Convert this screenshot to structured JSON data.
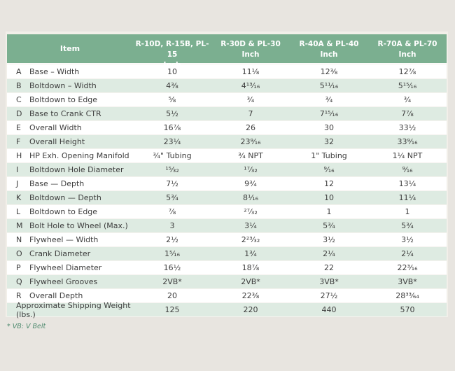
{
  "chart_data": {
    "type": "table",
    "header": {
      "item_label": "Item",
      "columns": [
        {
          "models": "R-10D, R-15B, PL-15",
          "unit": "Inch"
        },
        {
          "models": "R-30D & PL-30",
          "unit": "Inch"
        },
        {
          "models": "R-40A & PL-40",
          "unit": "Inch"
        },
        {
          "models": "R-70A & PL-70",
          "unit": "Inch"
        }
      ]
    },
    "rows": [
      {
        "letter": "A",
        "item": "Base – Width",
        "values": [
          "10",
          "11⅛",
          "12⅜",
          "12⅞"
        ]
      },
      {
        "letter": "B",
        "item": "Boltdown – Width",
        "values": [
          "4⅜",
          "4¹³⁄₁₆",
          "5¹¹⁄₁₆",
          "5¹⁵⁄₁₆"
        ]
      },
      {
        "letter": "C",
        "item": "Boltdown to Edge",
        "values": [
          "⅝",
          "¾",
          "¾",
          "¾"
        ]
      },
      {
        "letter": "D",
        "item": "Base to Crank CTR",
        "values": [
          "5½",
          "7",
          "7¹⁵⁄₁₆",
          "7⅞"
        ]
      },
      {
        "letter": "E",
        "item": "Overall Width",
        "values": [
          "16⅞",
          "26",
          "30",
          "33½"
        ]
      },
      {
        "letter": "F",
        "item": "Overall Height",
        "values": [
          "23¼",
          "23⁹⁄₁₆",
          "32",
          "33⁹⁄₁₆"
        ]
      },
      {
        "letter": "H",
        "item": "HP Exh. Opening Manifold",
        "values": [
          "¾\" Tubing",
          "¾ NPT",
          "1\" Tubing",
          "1¼ NPT"
        ]
      },
      {
        "letter": "I",
        "item": "Boltdown Hole Diameter",
        "values": [
          "¹⁵⁄₃₂",
          "¹⁷⁄₃₂",
          "⁹⁄₁₆",
          "⁹⁄₁₆"
        ]
      },
      {
        "letter": "J",
        "item": "Base — Depth",
        "values": [
          "7½",
          "9¾",
          "12",
          "13¼"
        ]
      },
      {
        "letter": "K",
        "item": "Boltdown — Depth",
        "values": [
          "5¾",
          "8¹⁄₁₆",
          "10",
          "11¼"
        ]
      },
      {
        "letter": "L",
        "item": "Boltdown to Edge",
        "values": [
          "⅞",
          "²⁷⁄₃₂",
          "1",
          "1"
        ]
      },
      {
        "letter": "M",
        "item": "Bolt Hole to Wheel (Max.)",
        "values": [
          "3",
          "3¼",
          "5¾",
          "5¾"
        ]
      },
      {
        "letter": "N",
        "item": "Flywheel — Width",
        "values": [
          "2½",
          "2²³⁄₃₂",
          "3½",
          "3½"
        ]
      },
      {
        "letter": "O",
        "item": "Crank Diameter",
        "values": [
          "1⁵⁄₁₆",
          "1¾",
          "2¼",
          "2¼"
        ]
      },
      {
        "letter": "P",
        "item": "Flywheel Diameter",
        "values": [
          "16½",
          "18⅞",
          "22",
          "22³⁄₁₆"
        ]
      },
      {
        "letter": "Q",
        "item": "Flywheel Grooves",
        "values": [
          "2VB*",
          "2VB*",
          "3VB*",
          "3VB*"
        ]
      },
      {
        "letter": "R",
        "item": "Overall Depth",
        "values": [
          "20",
          "22⅜",
          "27½",
          "28³³⁄₆₄"
        ]
      }
    ],
    "summary_row": {
      "label": "Approximate Shipping Weight (lbs.)",
      "values": [
        "125",
        "220",
        "440",
        "570"
      ]
    },
    "footnote": "* VB: V Belt"
  },
  "colors": {
    "page_bg": "#e8e5e0",
    "header_bg": "#7baf90",
    "header_text": "#ffffff",
    "row_bg": "#ffffff",
    "row_alt_bg": "#deebe2",
    "text": "#3c3c3c",
    "note_text": "#4e8a6e"
  }
}
